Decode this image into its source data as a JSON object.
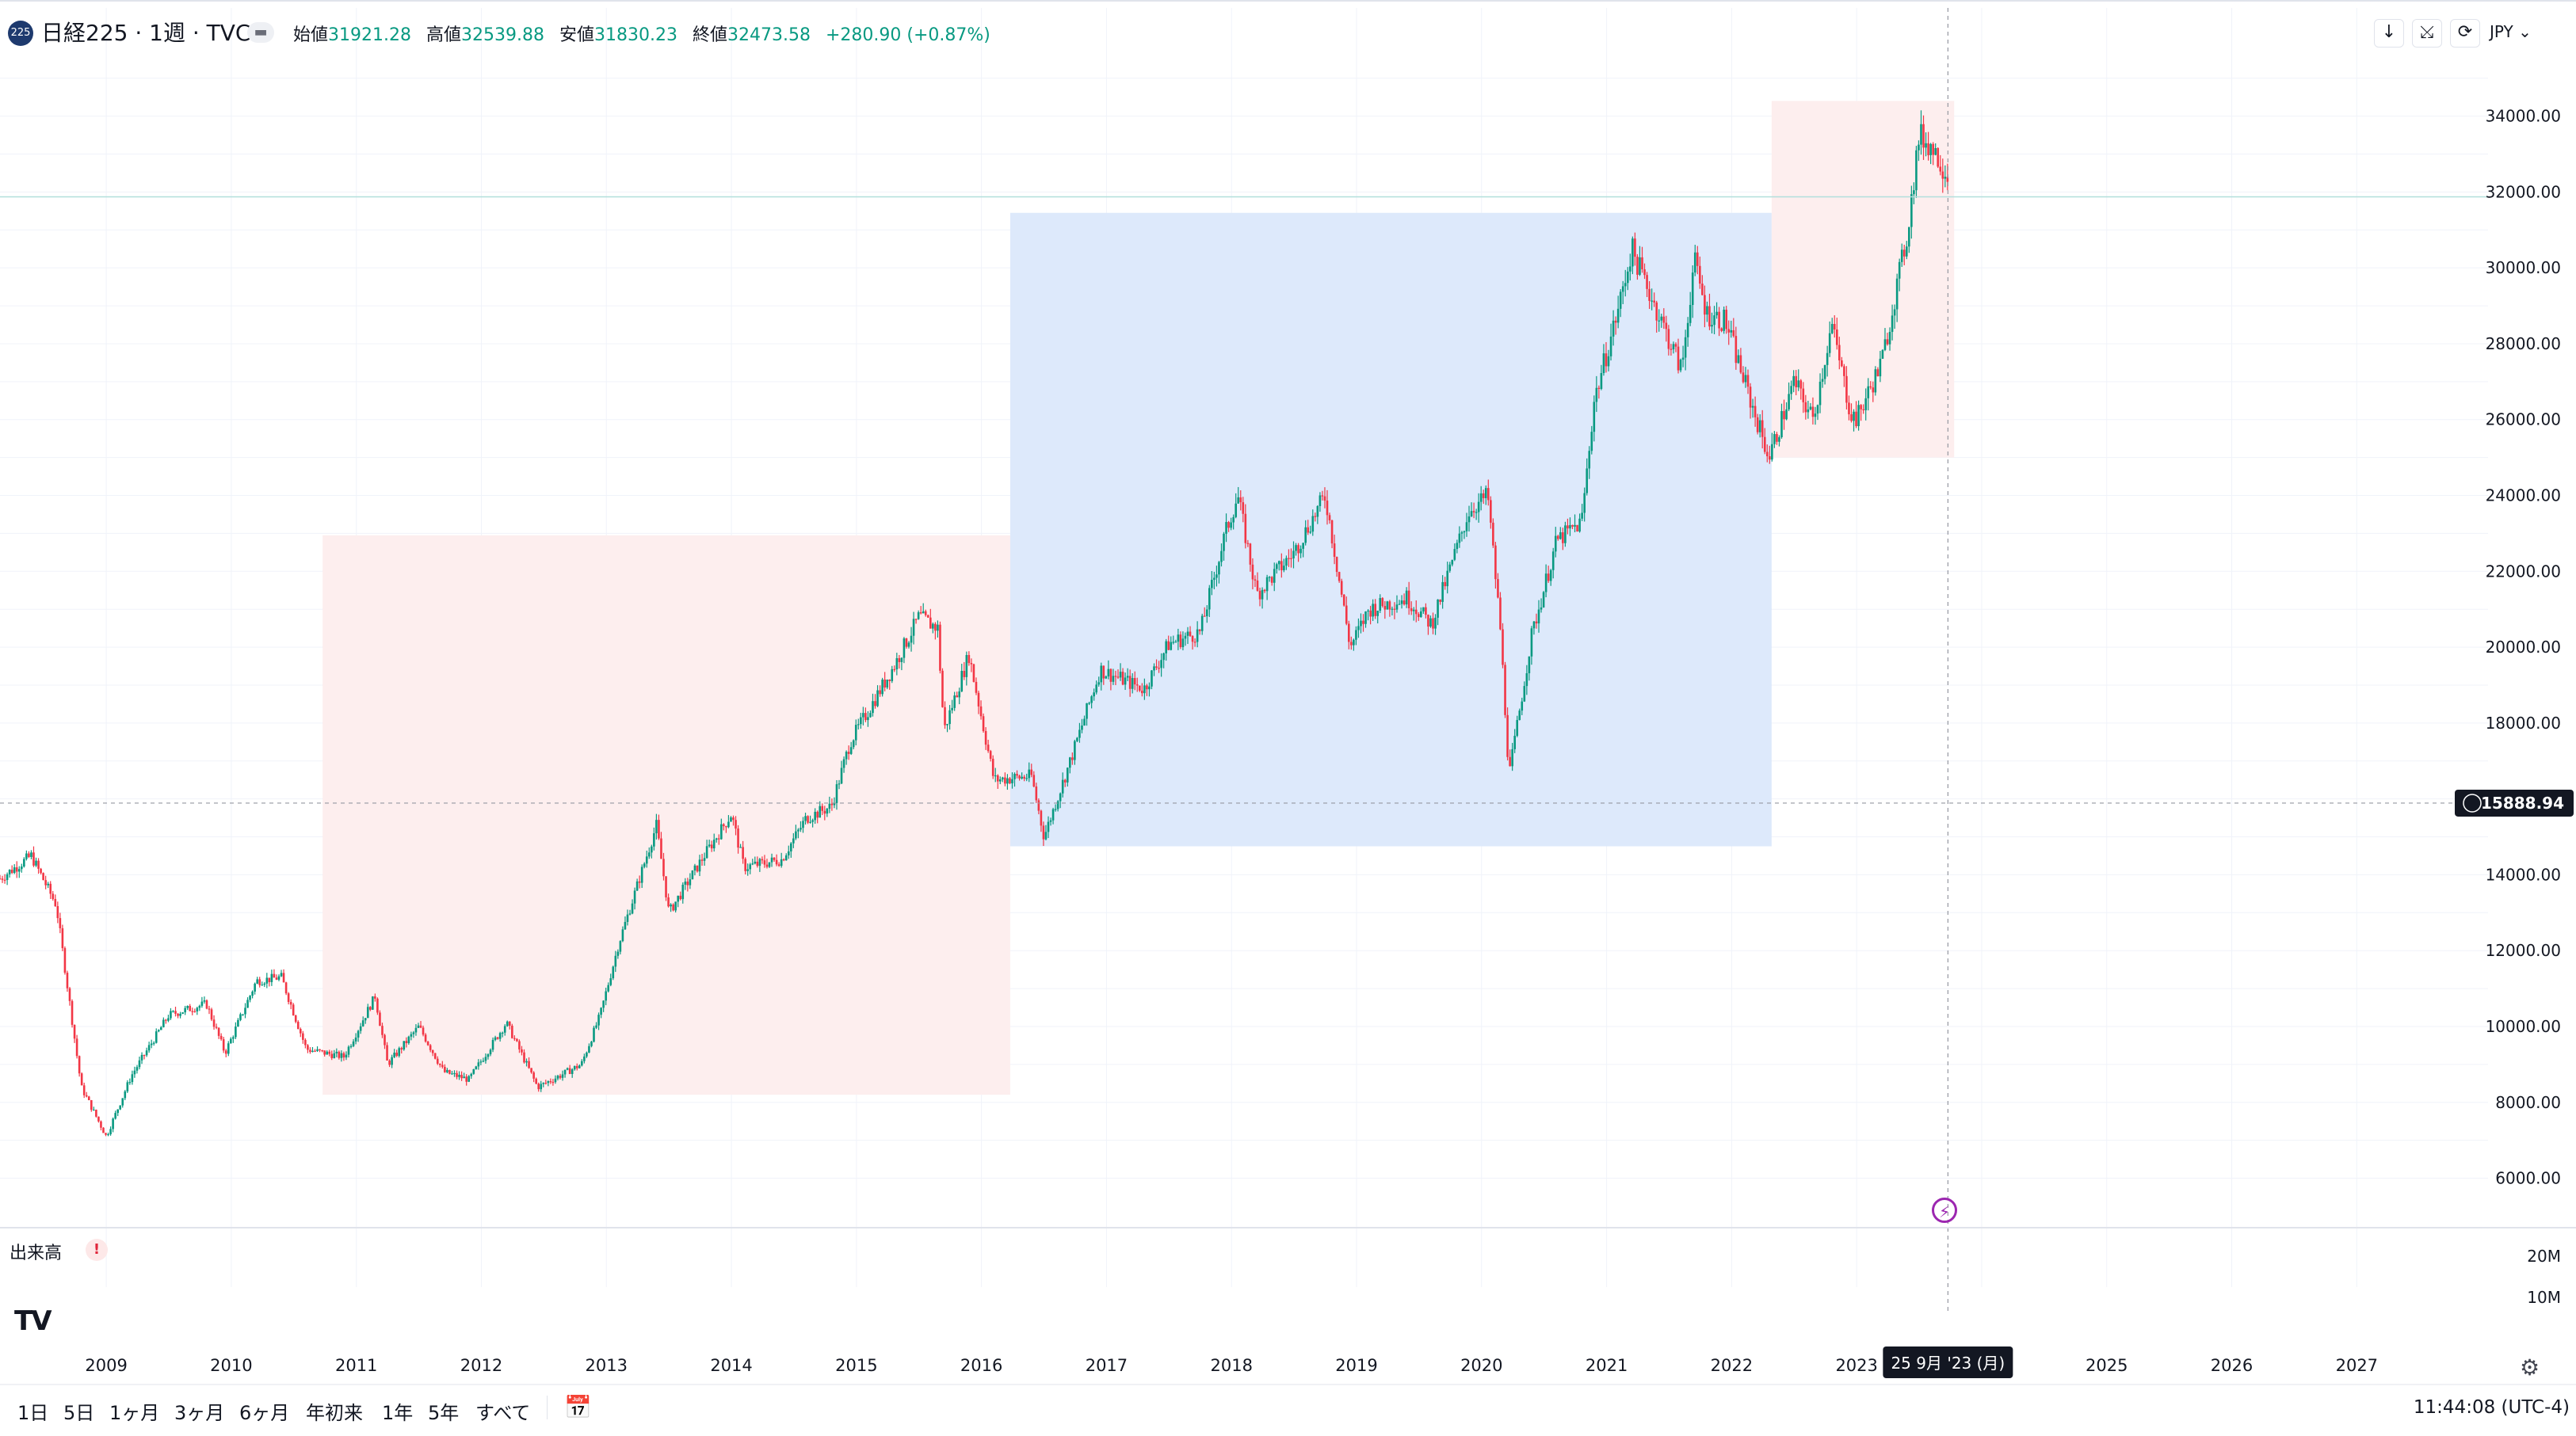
{
  "header": {
    "badge": "225",
    "title": "日経225 · 1週 · TVC",
    "ohlc": [
      {
        "label": "始値",
        "value": "31921.28"
      },
      {
        "label": "高値",
        "value": "32539.88"
      },
      {
        "label": "安値",
        "value": "31830.23"
      },
      {
        "label": "終値",
        "value": "32473.58"
      },
      {
        "label": "",
        "value": "+280.90 (+0.87%)"
      }
    ],
    "currency": "JPY ⌄",
    "tools": [
      "↓",
      "⤩",
      "⟳"
    ]
  },
  "colors": {
    "up": "#089981",
    "down": "#f23645",
    "pink_zone": "#fdeeee",
    "blue_zone": "#dde9fb",
    "grid": "#f0f3fa",
    "crosshair": "#9598a1"
  },
  "chart_data": {
    "type": "candlestick",
    "y_axis_ticks": [
      "6000.00",
      "8000.00",
      "10000.00",
      "12000.00",
      "14000.00",
      "16000.00",
      "18000.00",
      "20000.00",
      "22000.00",
      "24000.00",
      "26000.00",
      "28000.00",
      "30000.00",
      "32000.00",
      "34000.00"
    ],
    "ylim": [
      4800,
      35600
    ],
    "x_axis_ticks": [
      "2009",
      "2010",
      "2011",
      "2012",
      "2013",
      "2014",
      "2015",
      "2016",
      "2017",
      "2018",
      "2019",
      "2020",
      "2021",
      "2022",
      "2023",
      "2025",
      "2026",
      "2027"
    ],
    "xlim": [
      2008.15,
      2028.05
    ],
    "crosshair": {
      "price_label": "15888.94",
      "price": 15888.94,
      "date_label": "25 9月 '23 (月)",
      "x": 2023.73
    },
    "last_price_line": 32473.58,
    "zones": [
      {
        "x0": 2010.73,
        "x1": 2016.23,
        "y0": 8200,
        "y1": 22950,
        "color": "pink"
      },
      {
        "x0": 2016.23,
        "x1": 2022.32,
        "y0": 14750,
        "y1": 31450,
        "color": "blue"
      },
      {
        "x0": 2022.32,
        "x1": 2023.78,
        "y0": 25000,
        "y1": 34400,
        "color": "pink"
      }
    ],
    "path": [
      [
        2008.15,
        13900
      ],
      [
        2008.4,
        14500
      ],
      [
        2008.6,
        13200
      ],
      [
        2008.8,
        8400
      ],
      [
        2009.0,
        7100
      ],
      [
        2009.2,
        8700
      ],
      [
        2009.5,
        10300
      ],
      [
        2009.8,
        10600
      ],
      [
        2009.95,
        9300
      ],
      [
        2010.2,
        11200
      ],
      [
        2010.4,
        11300
      ],
      [
        2010.6,
        9400
      ],
      [
        2010.9,
        9200
      ],
      [
        2011.15,
        10800
      ],
      [
        2011.25,
        9000
      ],
      [
        2011.5,
        10000
      ],
      [
        2011.7,
        8800
      ],
      [
        2011.9,
        8600
      ],
      [
        2012.2,
        10100
      ],
      [
        2012.45,
        8400
      ],
      [
        2012.8,
        9000
      ],
      [
        2012.95,
        10300
      ],
      [
        2013.1,
        12200
      ],
      [
        2013.4,
        15300
      ],
      [
        2013.5,
        13000
      ],
      [
        2013.8,
        14600
      ],
      [
        2014.0,
        15600
      ],
      [
        2014.1,
        14200
      ],
      [
        2014.4,
        14400
      ],
      [
        2014.6,
        15500
      ],
      [
        2014.8,
        15800
      ],
      [
        2014.95,
        17500
      ],
      [
        2015.3,
        19500
      ],
      [
        2015.5,
        20800
      ],
      [
        2015.65,
        20500
      ],
      [
        2015.7,
        17800
      ],
      [
        2015.9,
        19800
      ],
      [
        2016.1,
        16500
      ],
      [
        2016.4,
        16600
      ],
      [
        2016.5,
        15000
      ],
      [
        2016.7,
        16900
      ],
      [
        2016.95,
        19400
      ],
      [
        2017.3,
        18900
      ],
      [
        2017.5,
        20100
      ],
      [
        2017.75,
        20400
      ],
      [
        2017.95,
        23000
      ],
      [
        2018.05,
        24000
      ],
      [
        2018.2,
        21400
      ],
      [
        2018.5,
        22500
      ],
      [
        2018.75,
        24000
      ],
      [
        2018.95,
        20000
      ],
      [
        2019.1,
        21000
      ],
      [
        2019.4,
        21300
      ],
      [
        2019.6,
        20600
      ],
      [
        2019.9,
        23600
      ],
      [
        2020.05,
        24000
      ],
      [
        2020.15,
        20500
      ],
      [
        2020.22,
        16600
      ],
      [
        2020.4,
        20300
      ],
      [
        2020.6,
        22800
      ],
      [
        2020.8,
        23300
      ],
      [
        2020.9,
        26500
      ],
      [
        2021.1,
        29000
      ],
      [
        2021.2,
        30500
      ],
      [
        2021.4,
        28900
      ],
      [
        2021.6,
        27300
      ],
      [
        2021.7,
        30200
      ],
      [
        2021.8,
        28800
      ],
      [
        2021.95,
        28600
      ],
      [
        2022.15,
        26500
      ],
      [
        2022.3,
        25000
      ],
      [
        2022.5,
        27000
      ],
      [
        2022.65,
        26000
      ],
      [
        2022.8,
        28500
      ],
      [
        2022.95,
        26200
      ],
      [
        2023.0,
        26000
      ],
      [
        2023.2,
        27500
      ],
      [
        2023.4,
        30800
      ],
      [
        2023.5,
        33500
      ],
      [
        2023.6,
        33200
      ],
      [
        2023.73,
        32473
      ]
    ]
  },
  "volume": {
    "label": "出来高",
    "warn": "!",
    "ticks": [
      "20M",
      "10M"
    ]
  },
  "timeframes": [
    "1日",
    "5日",
    "1ヶ月",
    "3ヶ月",
    "6ヶ月",
    "年初来",
    "1年",
    "5年",
    "すべて"
  ],
  "clock": "11:44:08 (UTC-4)",
  "logo": "TV"
}
